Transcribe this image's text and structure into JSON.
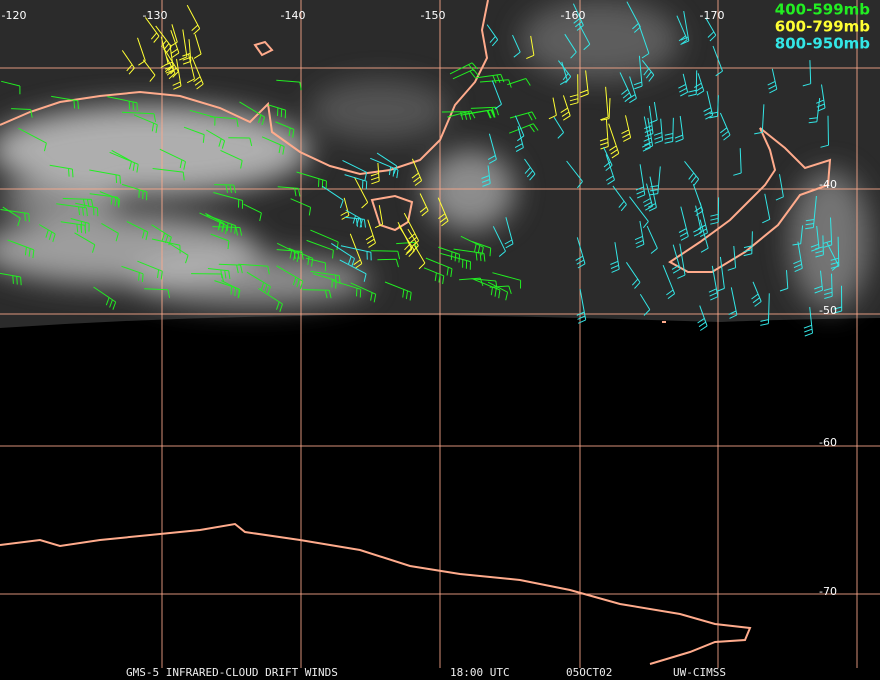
{
  "map": {
    "longitude_labels": [
      "-120",
      "-130",
      "-140",
      "-150",
      "-160",
      "-170"
    ],
    "latitude_labels": [
      "-40",
      "-50",
      "-60",
      "-70"
    ],
    "legend": [
      {
        "label": "400-599mb",
        "color": "#22ee22"
      },
      {
        "label": "600-799mb",
        "color": "#ffff33"
      },
      {
        "label": "800-950mb",
        "color": "#33e6e6"
      }
    ],
    "footer": [
      "GMS-5 INFRARED-CLOUD DRIFT WINDS",
      "18:00 UTC",
      "05OCT02",
      "UW-CIMSS"
    ]
  }
}
